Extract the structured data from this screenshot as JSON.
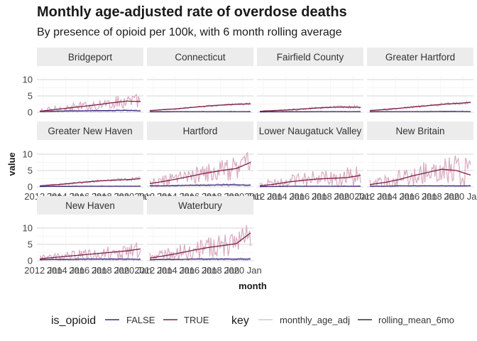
{
  "chart_data": {
    "type": "line",
    "title": "Monthly age-adjusted rate of overdose deaths",
    "subtitle": "By presence of opioid per 100k, with 6 month rolling average",
    "xlabel": "month",
    "ylabel": "value",
    "ylim": [
      0,
      12
    ],
    "yticks": [
      "0",
      "5",
      "10"
    ],
    "xticks": [
      "2012 Jan",
      "2014 Jan",
      "2016 Jan",
      "2018 Jan",
      "2020 Jan"
    ],
    "grid": true,
    "legend_position": "bottom",
    "legend": {
      "color_title": "is_opioid",
      "color_items": [
        "FALSE",
        "TRUE"
      ],
      "color_values": [
        "#3b2a7a",
        "#7a1f45"
      ],
      "linetype_title": "key",
      "linetype_items": [
        "monthly_age_adj",
        "rolling_mean_6mo"
      ]
    },
    "facets": [
      {
        "name": "Bridgeport",
        "true_avg": [
          0.3,
          0.8,
          1.3,
          1.8,
          2.3,
          2.9,
          3.4,
          3.3
        ],
        "true_var": 1.5,
        "false_avg": [
          0.2,
          0.3,
          0.4,
          0.4,
          0.5,
          0.5,
          0.6,
          0.4
        ]
      },
      {
        "name": "Connecticut",
        "true_avg": [
          0.5,
          0.8,
          1.1,
          1.5,
          1.9,
          2.2,
          2.4,
          2.6
        ],
        "true_var": 0.25,
        "false_avg": [
          0.15,
          0.15,
          0.2,
          0.2,
          0.2,
          0.2,
          0.2,
          0.2
        ]
      },
      {
        "name": "Fairfield County",
        "true_avg": [
          0.3,
          0.5,
          0.7,
          1.0,
          1.3,
          1.5,
          1.6,
          1.5
        ],
        "true_var": 0.35,
        "false_avg": [
          0.1,
          0.15,
          0.15,
          0.15,
          0.2,
          0.2,
          0.2,
          0.2
        ]
      },
      {
        "name": "Greater Hartford",
        "true_avg": [
          0.5,
          0.8,
          1.2,
          1.6,
          2.0,
          2.4,
          2.7,
          3.0
        ],
        "true_var": 0.35,
        "false_avg": [
          0.15,
          0.2,
          0.2,
          0.2,
          0.2,
          0.25,
          0.25,
          0.2
        ]
      },
      {
        "name": "Greater New Haven",
        "true_avg": [
          0.3,
          0.6,
          1.0,
          1.4,
          1.8,
          2.0,
          2.2,
          2.5
        ],
        "true_var": 0.35,
        "false_avg": [
          0.1,
          0.15,
          0.15,
          0.2,
          0.2,
          0.2,
          0.2,
          0.2
        ]
      },
      {
        "name": "Hartford",
        "true_avg": [
          1.0,
          1.7,
          2.5,
          3.4,
          4.3,
          5.0,
          5.6,
          7.5
        ],
        "true_var": 2.5,
        "false_avg": [
          0.3,
          0.3,
          0.4,
          0.5,
          0.5,
          0.6,
          0.6,
          0.5
        ]
      },
      {
        "name": "Lower Naugatuck Valley",
        "true_avg": [
          0.3,
          0.8,
          1.5,
          2.0,
          2.4,
          2.6,
          2.8,
          3.5
        ],
        "true_var": 2.3,
        "false_avg": [
          0.1,
          0.1,
          0.2,
          0.2,
          0.2,
          0.2,
          0.2,
          0.2
        ]
      },
      {
        "name": "New Britain",
        "true_avg": [
          0.7,
          1.3,
          2.2,
          3.4,
          4.4,
          5.4,
          5.0,
          3.6
        ],
        "true_var": 3.2,
        "false_avg": [
          0.2,
          0.2,
          0.3,
          0.3,
          0.3,
          0.3,
          0.3,
          0.3
        ]
      },
      {
        "name": "New Haven",
        "true_avg": [
          0.6,
          1.0,
          1.4,
          1.8,
          2.2,
          2.6,
          3.0,
          3.6
        ],
        "true_var": 1.7,
        "false_avg": [
          0.3,
          0.4,
          0.4,
          0.5,
          0.5,
          0.5,
          0.5,
          0.4
        ]
      },
      {
        "name": "Waterbury",
        "true_avg": [
          0.8,
          1.5,
          2.3,
          3.2,
          4.0,
          4.6,
          5.2,
          8.5
        ],
        "true_var": 2.8,
        "false_avg": [
          0.3,
          0.4,
          0.4,
          0.5,
          0.5,
          0.5,
          0.5,
          0.5
        ]
      }
    ]
  }
}
